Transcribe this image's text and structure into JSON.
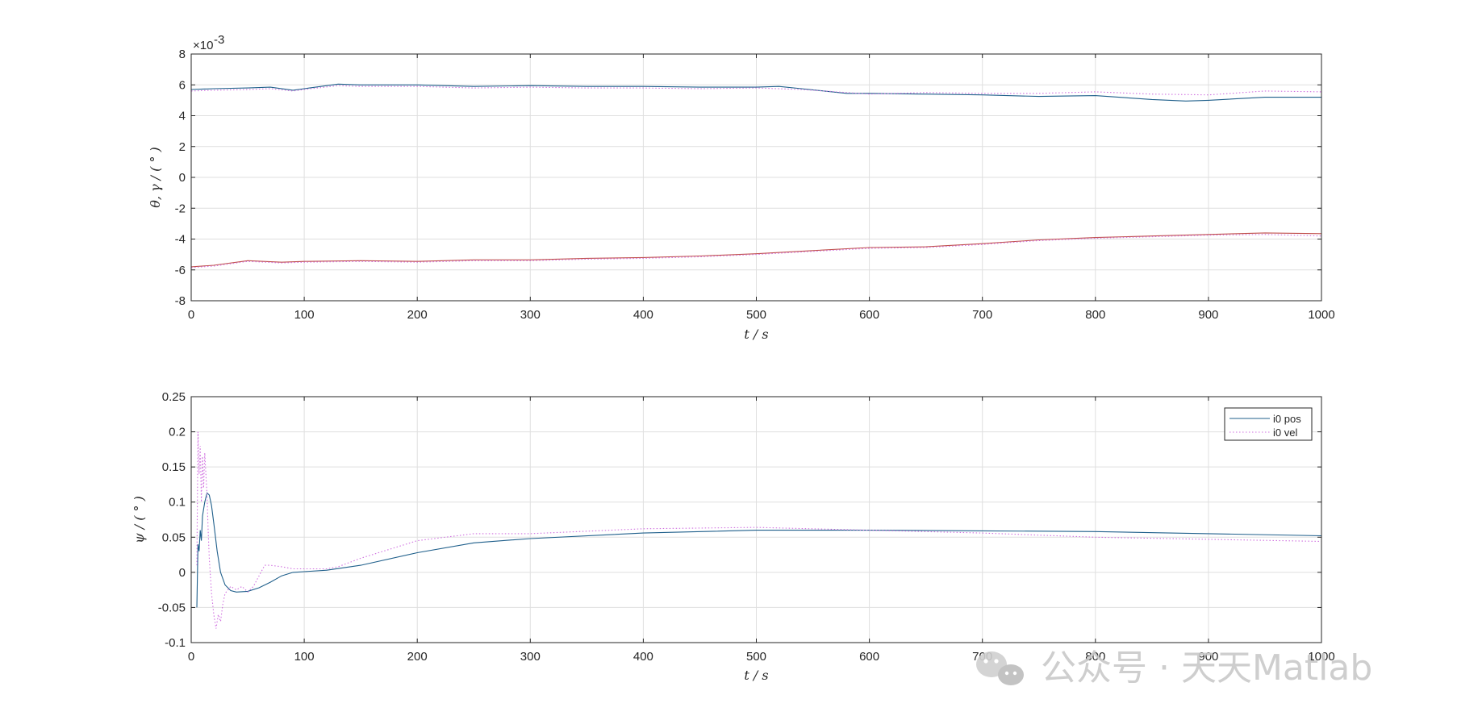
{
  "chart_data": [
    {
      "type": "line",
      "title": "",
      "xlabel": "t  / s",
      "ylabel": "θ, γ / ( ° )",
      "y_exponent_label": "×10",
      "y_exponent": "-3",
      "xlim": [
        0,
        1000
      ],
      "ylim": [
        -8,
        8
      ],
      "grid": true,
      "legend": null,
      "x_ticks": [
        "0",
        "100",
        "200",
        "300",
        "400",
        "500",
        "600",
        "700",
        "800",
        "900",
        "1000"
      ],
      "y_ticks": [
        "-8",
        "-6",
        "-4",
        "-2",
        "0",
        "2",
        "4",
        "6",
        "8"
      ],
      "y_tick_values": [
        -8,
        -6,
        -4,
        -2,
        0,
        2,
        4,
        6,
        8
      ],
      "x_tick_values": [
        0,
        100,
        200,
        300,
        400,
        500,
        600,
        700,
        800,
        900,
        1000
      ],
      "series": [
        {
          "color": "#1f5f8b",
          "dash": "solid",
          "x": [
            0,
            20,
            50,
            70,
            90,
            100,
            130,
            150,
            200,
            250,
            300,
            350,
            400,
            450,
            500,
            520,
            540,
            560,
            580,
            600,
            650,
            700,
            750,
            800,
            850,
            880,
            900,
            950,
            1000
          ],
          "values": [
            5.7,
            5.75,
            5.8,
            5.85,
            5.65,
            5.75,
            6.05,
            6.0,
            6.0,
            5.9,
            5.95,
            5.9,
            5.9,
            5.85,
            5.85,
            5.9,
            5.75,
            5.6,
            5.45,
            5.45,
            5.4,
            5.35,
            5.25,
            5.3,
            5.05,
            4.95,
            5.0,
            5.2,
            5.2
          ]
        },
        {
          "color": "#d070e0",
          "dash": "dotted",
          "x": [
            0,
            20,
            50,
            70,
            90,
            100,
            130,
            150,
            200,
            250,
            300,
            350,
            400,
            450,
            500,
            540,
            580,
            600,
            650,
            700,
            750,
            800,
            850,
            900,
            950,
            1000
          ],
          "values": [
            5.6,
            5.65,
            5.7,
            5.75,
            5.6,
            5.7,
            5.95,
            5.9,
            5.9,
            5.8,
            5.85,
            5.8,
            5.8,
            5.75,
            5.8,
            5.7,
            5.5,
            5.4,
            5.5,
            5.45,
            5.45,
            5.55,
            5.4,
            5.35,
            5.6,
            5.55
          ]
        },
        {
          "color": "#c0504d",
          "dash": "solid",
          "x": [
            0,
            20,
            50,
            80,
            100,
            150,
            200,
            250,
            300,
            350,
            400,
            450,
            500,
            550,
            600,
            650,
            700,
            750,
            800,
            850,
            900,
            950,
            1000
          ],
          "values": [
            -5.8,
            -5.7,
            -5.4,
            -5.5,
            -5.45,
            -5.4,
            -5.45,
            -5.35,
            -5.35,
            -5.25,
            -5.2,
            -5.1,
            -4.95,
            -4.75,
            -4.55,
            -4.5,
            -4.3,
            -4.05,
            -3.9,
            -3.8,
            -3.7,
            -3.6,
            -3.65
          ]
        },
        {
          "color": "#d070e0",
          "dash": "dotted",
          "x": [
            0,
            20,
            50,
            80,
            100,
            150,
            200,
            250,
            300,
            350,
            400,
            450,
            500,
            550,
            600,
            650,
            700,
            750,
            800,
            850,
            900,
            950,
            1000
          ],
          "values": [
            -5.85,
            -5.75,
            -5.45,
            -5.55,
            -5.5,
            -5.45,
            -5.5,
            -5.4,
            -5.4,
            -5.3,
            -5.25,
            -5.15,
            -5.0,
            -4.8,
            -4.6,
            -4.55,
            -4.35,
            -4.1,
            -3.95,
            -3.85,
            -3.75,
            -3.7,
            -3.8
          ]
        }
      ]
    },
    {
      "type": "line",
      "title": "",
      "xlabel": "t  / s",
      "ylabel": "ψ / ( ° )",
      "xlim": [
        0,
        1000
      ],
      "ylim": [
        -0.1,
        0.25
      ],
      "grid": true,
      "legend": "top-right",
      "x_ticks": [
        "0",
        "100",
        "200",
        "300",
        "400",
        "500",
        "600",
        "700",
        "800",
        "900",
        "1000"
      ],
      "y_ticks": [
        "-0.1",
        "-0.05",
        "0",
        "0.05",
        "0.1",
        "0.15",
        "0.2",
        "0.25"
      ],
      "y_tick_values": [
        -0.1,
        -0.05,
        0,
        0.05,
        0.1,
        0.15,
        0.2,
        0.25
      ],
      "x_tick_values": [
        0,
        100,
        200,
        300,
        400,
        500,
        600,
        700,
        800,
        900,
        1000
      ],
      "series": [
        {
          "name": "i0 pos",
          "color": "#1f5f8b",
          "dash": "solid",
          "x": [
            5,
            6,
            7,
            8,
            9,
            10,
            12,
            14,
            16,
            18,
            20,
            23,
            26,
            30,
            35,
            40,
            50,
            60,
            70,
            80,
            90,
            100,
            120,
            150,
            200,
            250,
            300,
            400,
            500,
            600,
            700,
            800,
            900,
            1000
          ],
          "values": [
            -0.05,
            0.04,
            0.03,
            0.06,
            0.045,
            0.08,
            0.1,
            0.113,
            0.11,
            0.095,
            0.07,
            0.03,
            0.0,
            -0.018,
            -0.026,
            -0.028,
            -0.027,
            -0.022,
            -0.014,
            -0.005,
            0.0,
            0.001,
            0.003,
            0.01,
            0.028,
            0.042,
            0.048,
            0.056,
            0.06,
            0.06,
            0.059,
            0.058,
            0.055,
            0.052
          ]
        },
        {
          "name": "i0 vel",
          "color": "#d070e0",
          "dash": "dotted",
          "x": [
            5,
            6,
            7,
            8,
            9,
            10,
            11,
            12,
            13,
            14,
            15,
            16,
            18,
            20,
            22,
            24,
            26,
            28,
            30,
            35,
            40,
            45,
            50,
            55,
            60,
            65,
            70,
            80,
            90,
            100,
            120,
            130,
            150,
            200,
            250,
            300,
            400,
            500,
            600,
            700,
            800,
            900,
            1000
          ],
          "values": [
            0.01,
            0.2,
            0.14,
            0.18,
            0.1,
            0.165,
            0.12,
            0.17,
            0.14,
            0.11,
            0.06,
            0.02,
            -0.03,
            -0.06,
            -0.08,
            -0.06,
            -0.07,
            -0.045,
            -0.03,
            -0.02,
            -0.025,
            -0.02,
            -0.028,
            -0.02,
            -0.005,
            0.01,
            0.01,
            0.008,
            0.005,
            0.005,
            0.005,
            0.008,
            0.02,
            0.045,
            0.055,
            0.055,
            0.062,
            0.064,
            0.06,
            0.056,
            0.05,
            0.047,
            0.044
          ]
        }
      ]
    }
  ],
  "watermark": {
    "text": "公众号 · 天天Matlab",
    "icon": "wechat-icon"
  }
}
